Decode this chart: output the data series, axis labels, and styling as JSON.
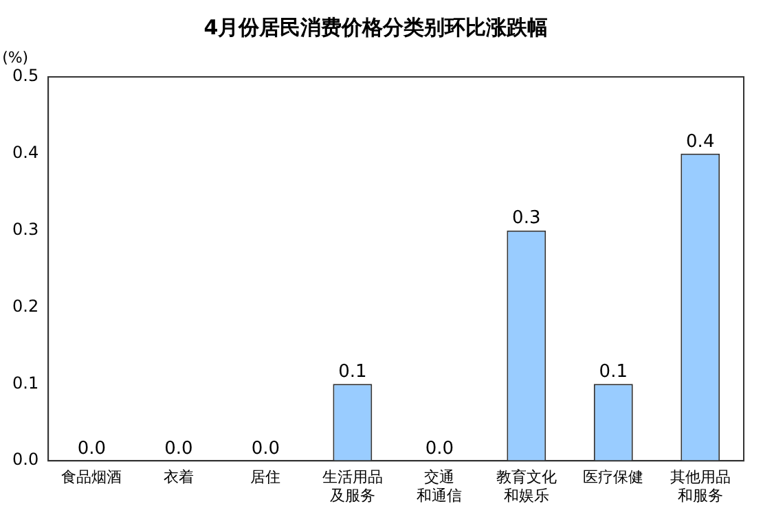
{
  "chart_data": {
    "type": "bar",
    "title": "4月份居民消费价格分类别环比涨跌幅",
    "ylabel": "(%)",
    "categories": [
      "食品烟酒",
      "衣着",
      "居住",
      "生活用品及服务",
      "交通和通信",
      "教育文化和娱乐",
      "医疗保健",
      "其他用品和服务"
    ],
    "values": [
      0,
      0,
      0,
      0.1,
      0,
      0.3,
      0.1,
      0.4
    ],
    "value_labels": [
      "0.0",
      "0.0",
      "0.0",
      "0.1",
      "0.0",
      "0.3",
      "0.1",
      "0.4"
    ],
    "color": "#99ccff",
    "ylim": [
      0,
      0.5
    ],
    "yticks": [
      {
        "value": 0,
        "label": "0.0"
      },
      {
        "value": 0.1,
        "label": "0.1"
      },
      {
        "value": 0.2,
        "label": "0.2"
      },
      {
        "value": 0.3,
        "label": "0.3"
      },
      {
        "value": 0.4,
        "label": "0.4"
      },
      {
        "value": 0.5,
        "label": "0.5"
      }
    ],
    "grid": false,
    "legend": false
  }
}
